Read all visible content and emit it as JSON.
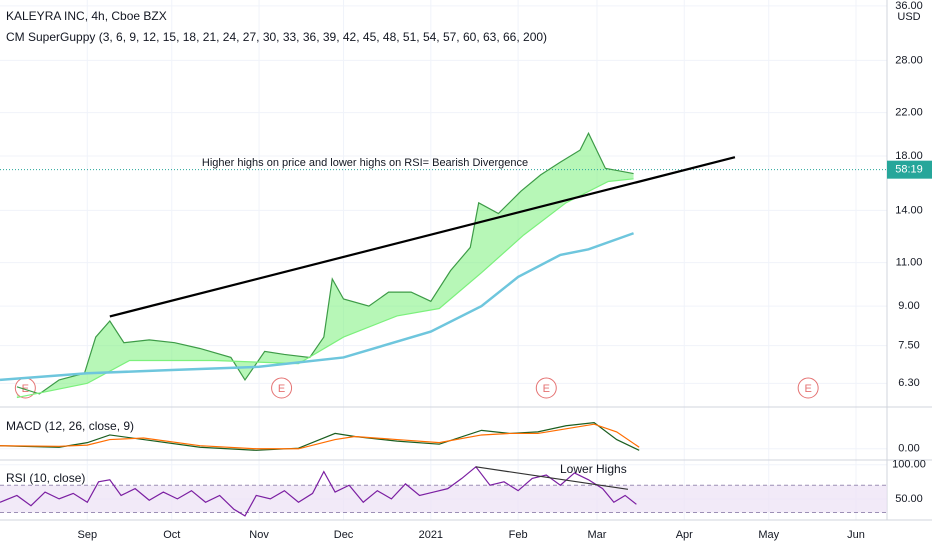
{
  "header": {
    "symbol": "KALEYRA INC, 4h, Cboe BZX",
    "indicator": "CM SuperGuppy (3, 6, 9, 12, 15, 18, 21, 24, 27, 30, 33, 36, 39, 42, 45, 48, 51, 54, 57, 60, 63, 66, 200)",
    "currency": "USD",
    "countdown": "58:19"
  },
  "annotations": {
    "divergence": "Higher highs on price and lower highs on RSI= Bearish Divergence",
    "rsi": "Lower Highs"
  },
  "chart_data": [
    {
      "type": "line",
      "log_scale": true,
      "xlim": [
        -31,
        284
      ],
      "ylim": [
        5.7,
        37
      ],
      "xticks": [
        {
          "value": 0,
          "label": "Sep"
        },
        {
          "value": 30,
          "label": "Oct"
        },
        {
          "value": 61,
          "label": "Nov"
        },
        {
          "value": 91,
          "label": "Dec"
        },
        {
          "value": 122,
          "label": "2021"
        },
        {
          "value": 153,
          "label": "Feb"
        },
        {
          "value": 181,
          "label": "Mar"
        },
        {
          "value": 212,
          "label": "Apr"
        },
        {
          "value": 242,
          "label": "May"
        },
        {
          "value": 273,
          "label": "Jun"
        }
      ],
      "yticks": [
        {
          "value": 6.3,
          "label": "6.30"
        },
        {
          "value": 7.5,
          "label": "7.50"
        },
        {
          "value": 9,
          "label": "9.00"
        },
        {
          "value": 11,
          "label": "11.00"
        },
        {
          "value": 14,
          "label": "14.00"
        },
        {
          "value": 18,
          "label": "18.00"
        },
        {
          "value": 22,
          "label": "22.00"
        },
        {
          "value": 28,
          "label": "28.00"
        },
        {
          "value": 36,
          "label": "36.00"
        }
      ],
      "price_line": 16.9,
      "events": {
        "label": "E",
        "x": [
          -22,
          69,
          163,
          256
        ]
      },
      "series": [
        {
          "color": "#3d9b47",
          "x": [
            -25,
            -17,
            -10,
            -1,
            3,
            8,
            13,
            22,
            31,
            40,
            51,
            56,
            63,
            70,
            79,
            84,
            87,
            91,
            100,
            107,
            115,
            122,
            129,
            136,
            139,
            146,
            154,
            161,
            168,
            175,
            178,
            184,
            189,
            194
          ],
          "values": [
            6.2,
            6.0,
            6.4,
            6.6,
            7.8,
            8.4,
            7.6,
            7.7,
            7.6,
            7.4,
            7.1,
            6.4,
            7.3,
            7.2,
            7.1,
            7.8,
            10.2,
            9.3,
            9.0,
            9.6,
            9.6,
            9.2,
            10.6,
            11.8,
            14.5,
            13.8,
            15.3,
            16.5,
            17.5,
            18.5,
            20.0,
            17.0,
            16.8,
            16.6
          ]
        },
        {
          "color": "#7cf07c",
          "x": [
            -25,
            0,
            15,
            45,
            75,
            91,
            110,
            125,
            140,
            155,
            170,
            185,
            194
          ],
          "values": [
            5.9,
            6.3,
            7.0,
            7.0,
            6.9,
            7.8,
            8.6,
            8.9,
            10.5,
            12.5,
            14.5,
            16.0,
            16.2
          ]
        },
        {
          "color": "#6ec6dd",
          "x": [
            -31,
            0,
            30,
            61,
            91,
            122,
            140,
            153,
            168,
            178,
            194
          ],
          "values": [
            6.4,
            6.6,
            6.7,
            6.8,
            7.1,
            8.0,
            9.0,
            10.3,
            11.4,
            11.7,
            12.6
          ]
        },
        {
          "color": "#000000",
          "x": [
            8,
            230
          ],
          "values": [
            8.58,
            17.9
          ]
        }
      ]
    },
    {
      "type": "line",
      "title": "MACD (12, 26, close, 9)",
      "ylim": [
        -0.3,
        1.1
      ],
      "yticks": [
        {
          "value": 0,
          "label": "0.00"
        }
      ],
      "series": [
        {
          "color": "#1b5e20",
          "x": [
            -31,
            -10,
            0,
            8,
            20,
            40,
            60,
            75,
            88,
            95,
            110,
            125,
            140,
            150,
            160,
            170,
            180,
            188,
            196
          ],
          "values": [
            0.1,
            0.05,
            0.2,
            0.45,
            0.3,
            0.05,
            -0.05,
            0.02,
            0.5,
            0.4,
            0.25,
            0.15,
            0.6,
            0.5,
            0.55,
            0.75,
            0.85,
            0.3,
            -0.05
          ]
        },
        {
          "color": "#ff6d00",
          "x": [
            -31,
            -10,
            0,
            8,
            20,
            40,
            60,
            75,
            88,
            95,
            110,
            125,
            140,
            150,
            160,
            170,
            180,
            188,
            196
          ],
          "values": [
            0.1,
            0.08,
            0.12,
            0.3,
            0.35,
            0.1,
            0,
            0,
            0.3,
            0.4,
            0.3,
            0.2,
            0.45,
            0.5,
            0.5,
            0.65,
            0.8,
            0.55,
            0.05
          ]
        }
      ]
    },
    {
      "type": "line",
      "title": "RSI (10, close)",
      "ylim": [
        19,
        107
      ],
      "yticks": [
        {
          "value": 100,
          "label": "100.00"
        },
        {
          "value": 50,
          "label": "50.00"
        }
      ],
      "band": [
        30,
        70
      ],
      "series": [
        {
          "color": "#7b1fa2",
          "x": [
            -31,
            -25,
            -20,
            -15,
            -10,
            -5,
            0,
            4,
            8,
            12,
            17,
            22,
            27,
            32,
            37,
            42,
            47,
            52,
            56,
            60,
            65,
            70,
            75,
            80,
            84,
            88,
            93,
            98,
            103,
            108,
            113,
            118,
            123,
            128,
            133,
            138,
            143,
            148,
            153,
            158,
            163,
            168,
            173,
            178,
            183,
            187,
            191,
            195
          ],
          "values": [
            45,
            55,
            40,
            60,
            50,
            58,
            45,
            75,
            78,
            55,
            65,
            48,
            60,
            50,
            62,
            45,
            55,
            35,
            25,
            55,
            50,
            62,
            45,
            58,
            90,
            60,
            70,
            45,
            62,
            50,
            72,
            55,
            60,
            65,
            80,
            97,
            70,
            75,
            62,
            80,
            85,
            70,
            88,
            78,
            65,
            45,
            55,
            42
          ]
        },
        {
          "color": "#333333",
          "x": [
            138,
            192
          ],
          "values": [
            97,
            64
          ]
        }
      ]
    }
  ]
}
